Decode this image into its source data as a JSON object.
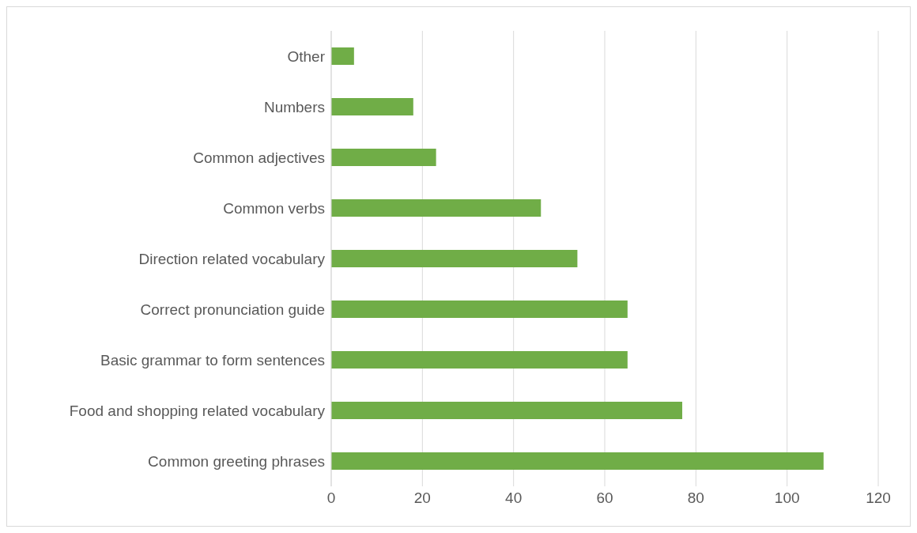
{
  "chart_data": {
    "type": "bar",
    "orientation": "horizontal",
    "categories": [
      "Other",
      "Numbers",
      "Common adjectives",
      "Common verbs",
      "Direction related vocabulary",
      "Correct pronunciation guide",
      "Basic grammar to form sentences",
      "Food and shopping related vocabulary",
      "Common greeting phrases"
    ],
    "values": [
      5,
      18,
      23,
      46,
      54,
      65,
      65,
      77,
      108
    ],
    "color": "#70ad47",
    "xlim": [
      0,
      120
    ],
    "xticks": [
      0,
      20,
      40,
      60,
      80,
      100,
      120
    ],
    "grid": "x"
  }
}
